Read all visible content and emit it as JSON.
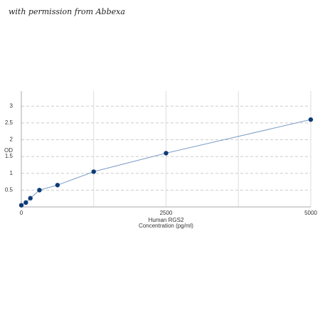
{
  "watermark": "with permission from Abbexa",
  "chart_data": {
    "type": "line",
    "x_label": [
      "Human RGS2",
      "Concentration (pg/ml)"
    ],
    "y_label": "OD",
    "x": [
      0,
      78.125,
      156.25,
      312.5,
      625,
      1250,
      2500,
      5000
    ],
    "series": [
      {
        "color": "#0d3b78",
        "line_color": "#7a9cc6",
        "values": [
          0.05,
          0.13,
          0.26,
          0.5,
          0.65,
          1.05,
          1.6,
          2.6
        ]
      }
    ],
    "xlim": [
      0,
      5000
    ],
    "xticks": [
      0,
      2500,
      5000
    ],
    "xgrid_lines": [
      1250,
      2500,
      3750,
      5000
    ],
    "ylim": [
      0,
      3.45
    ],
    "yticks": [
      0.5,
      1,
      1.5,
      2,
      2.5,
      3
    ],
    "grid": true
  }
}
